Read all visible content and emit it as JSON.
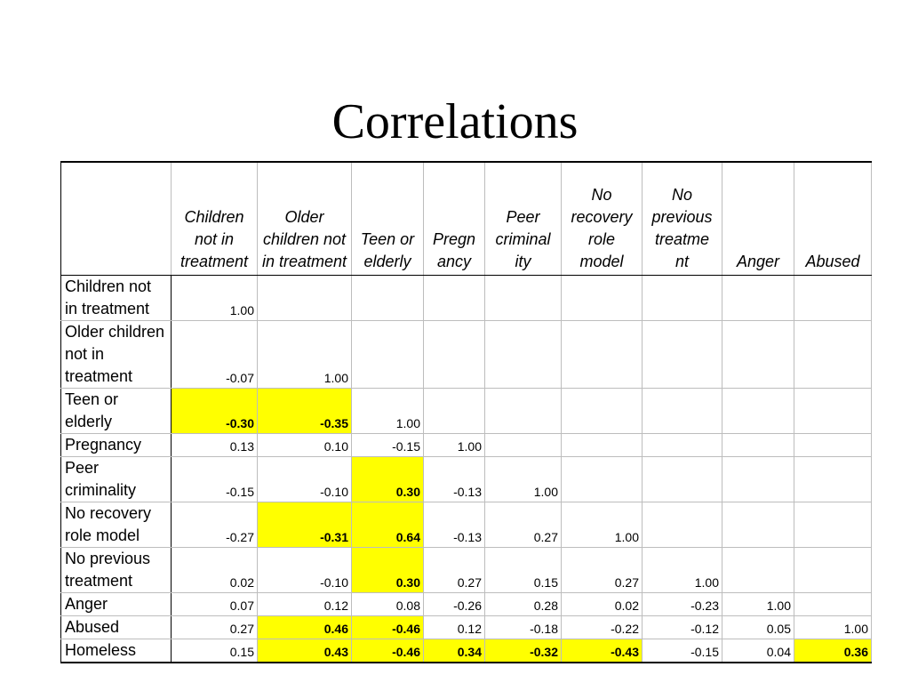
{
  "title": "Correlations",
  "table": {
    "columns": [
      "Children not in treatment",
      "Older children not in treatment",
      "Teen or elderly",
      "Pregn ancy",
      "Peer criminal ity",
      "No recovery role model",
      "No previous treatme nt",
      "Anger",
      "Abused"
    ],
    "rows": [
      {
        "label": "Children not in treatment",
        "values": [
          "1.00",
          "",
          "",
          "",
          "",
          "",
          "",
          "",
          ""
        ],
        "highlight": [
          false,
          false,
          false,
          false,
          false,
          false,
          false,
          false,
          false
        ]
      },
      {
        "label": "Older children not in treatment",
        "values": [
          "-0.07",
          "1.00",
          "",
          "",
          "",
          "",
          "",
          "",
          ""
        ],
        "highlight": [
          false,
          false,
          false,
          false,
          false,
          false,
          false,
          false,
          false
        ]
      },
      {
        "label": "Teen or elderly",
        "values": [
          "-0.30",
          "-0.35",
          "1.00",
          "",
          "",
          "",
          "",
          "",
          ""
        ],
        "highlight": [
          true,
          true,
          false,
          false,
          false,
          false,
          false,
          false,
          false
        ]
      },
      {
        "label": "Pregnancy",
        "values": [
          "0.13",
          "0.10",
          "-0.15",
          "1.00",
          "",
          "",
          "",
          "",
          ""
        ],
        "highlight": [
          false,
          false,
          false,
          false,
          false,
          false,
          false,
          false,
          false
        ]
      },
      {
        "label": "Peer criminality",
        "values": [
          "-0.15",
          "-0.10",
          "0.30",
          "-0.13",
          "1.00",
          "",
          "",
          "",
          ""
        ],
        "highlight": [
          false,
          false,
          true,
          false,
          false,
          false,
          false,
          false,
          false
        ]
      },
      {
        "label": "No recovery role model",
        "values": [
          "-0.27",
          "-0.31",
          "0.64",
          "-0.13",
          "0.27",
          "1.00",
          "",
          "",
          ""
        ],
        "highlight": [
          false,
          true,
          true,
          false,
          false,
          false,
          false,
          false,
          false
        ]
      },
      {
        "label": "No previous treatment",
        "values": [
          "0.02",
          "-0.10",
          "0.30",
          "0.27",
          "0.15",
          "0.27",
          "1.00",
          "",
          ""
        ],
        "highlight": [
          false,
          false,
          true,
          false,
          false,
          false,
          false,
          false,
          false
        ]
      },
      {
        "label": "Anger",
        "values": [
          "0.07",
          "0.12",
          "0.08",
          "-0.26",
          "0.28",
          "0.02",
          "-0.23",
          "1.00",
          ""
        ],
        "highlight": [
          false,
          false,
          false,
          false,
          false,
          false,
          false,
          false,
          false
        ]
      },
      {
        "label": "Abused",
        "values": [
          "0.27",
          "0.46",
          "-0.46",
          "0.12",
          "-0.18",
          "-0.22",
          "-0.12",
          "0.05",
          "1.00"
        ],
        "highlight": [
          false,
          true,
          true,
          false,
          false,
          false,
          false,
          false,
          false
        ]
      },
      {
        "label": "Homeless",
        "values": [
          "0.15",
          "0.43",
          "-0.46",
          "0.34",
          "-0.32",
          "-0.43",
          "-0.15",
          "0.04",
          "0.36"
        ],
        "highlight": [
          false,
          true,
          true,
          true,
          true,
          true,
          false,
          false,
          true
        ]
      }
    ]
  },
  "colors": {
    "highlight": "#ffff00",
    "text": "#000000",
    "background": "#ffffff"
  }
}
